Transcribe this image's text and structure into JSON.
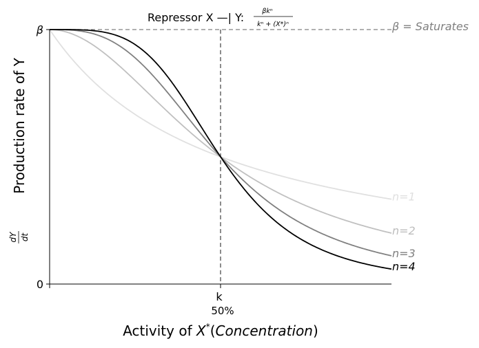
{
  "chart_data": {
    "type": "line",
    "title_prefix": "Repressor X —| Y: ",
    "title_formula": {
      "numerator": "βkⁿ",
      "denominator": "kⁿ + (X*)ⁿ"
    },
    "xlabel": {
      "plain": "Activity of ",
      "italic_x": "X",
      "star": "*",
      "paren_open": "(",
      "italic_conc": "Concentration",
      "paren_close": ")"
    },
    "ylabel": {
      "fraction_num": "dY",
      "fraction_den": "dt",
      "text": "Production rate of Y"
    },
    "x_tick_labels": [
      {
        "text": "k",
        "subtext": "50%",
        "x": 1
      }
    ],
    "y_tick_labels": [
      {
        "text": "β",
        "y": 1
      },
      {
        "text": "0",
        "y": 0
      }
    ],
    "xlim": [
      0,
      2
    ],
    "ylim": [
      0,
      1
    ],
    "beta_label": "β = Saturates",
    "k_marker_x": 1,
    "beta_level": 1,
    "colors": {
      "n1": "#e0e0e0",
      "n2": "#c0c0c0",
      "n3": "#808080",
      "n4": "#000000",
      "guide": "#808080"
    },
    "series": [
      {
        "name": "n=1",
        "n": 1,
        "color": "#e0e0e0",
        "label_color": "#e0e0e0",
        "x": [
          0,
          0.25,
          0.5,
          0.75,
          1,
          1.25,
          1.5,
          1.75,
          2
        ],
        "y": [
          1.0,
          0.8,
          0.667,
          0.571,
          0.5,
          0.444,
          0.4,
          0.364,
          0.333
        ]
      },
      {
        "name": "n=2",
        "n": 2,
        "color": "#c0c0c0",
        "label_color": "#bdbdbd",
        "x": [
          0,
          0.25,
          0.5,
          0.75,
          1,
          1.25,
          1.5,
          1.75,
          2
        ],
        "y": [
          1.0,
          0.941,
          0.8,
          0.64,
          0.5,
          0.39,
          0.308,
          0.246,
          0.2
        ]
      },
      {
        "name": "n=3",
        "n": 3,
        "color": "#808080",
        "label_color": "#808080",
        "x": [
          0,
          0.25,
          0.5,
          0.75,
          1,
          1.25,
          1.5,
          1.75,
          2
        ],
        "y": [
          1.0,
          0.985,
          0.889,
          0.703,
          0.5,
          0.339,
          0.229,
          0.157,
          0.111
        ]
      },
      {
        "name": "n=4",
        "n": 4,
        "color": "#000000",
        "label_color": "#000000",
        "x": [
          0,
          0.25,
          0.5,
          0.75,
          1,
          1.25,
          1.5,
          1.75,
          2
        ],
        "y": [
          1.0,
          0.996,
          0.941,
          0.76,
          0.5,
          0.291,
          0.165,
          0.096,
          0.059
        ]
      }
    ]
  }
}
